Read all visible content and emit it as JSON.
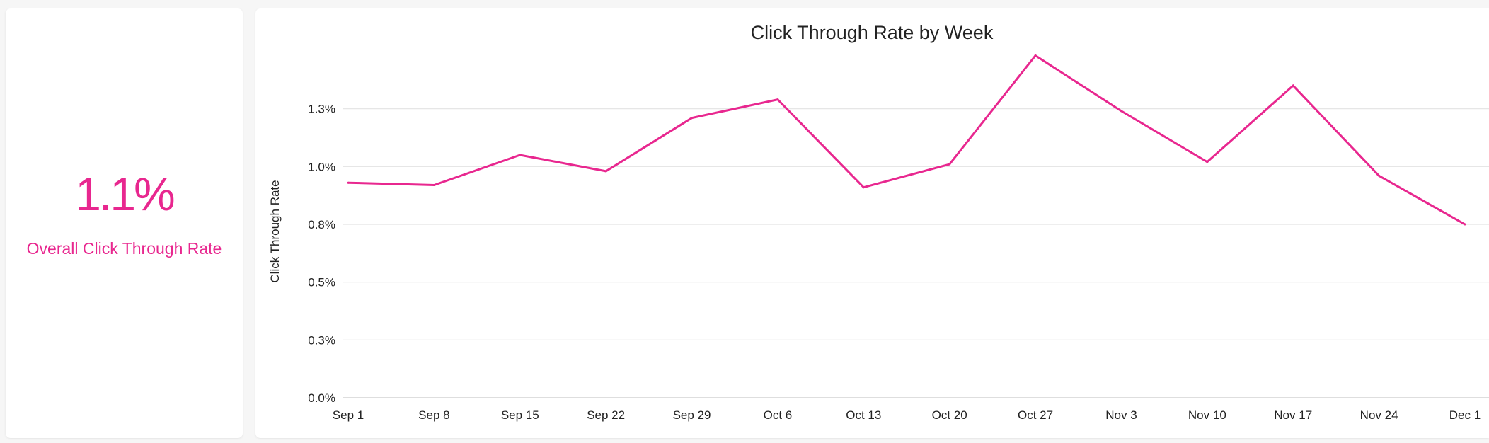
{
  "kpi": {
    "value": "1.1%",
    "label": "Overall Click Through Rate"
  },
  "colors": {
    "accent": "#e8278f",
    "grid": "#e3e3e3",
    "axis": "#c9c9c9",
    "text": "#222222"
  },
  "chart_data": {
    "type": "line",
    "title": "Click Through Rate by Week",
    "xlabel": "",
    "ylabel": "Click Through Rate",
    "categories": [
      "Sep 1",
      "Sep 8",
      "Sep 15",
      "Sep 22",
      "Sep 29",
      "Oct 6",
      "Oct 13",
      "Oct 20",
      "Oct 27",
      "Nov 3",
      "Nov 10",
      "Nov 17",
      "Nov 24",
      "Dec 1"
    ],
    "series": [
      {
        "values": [
          0.93,
          0.92,
          1.05,
          0.98,
          1.21,
          1.29,
          0.91,
          1.01,
          1.48,
          1.24,
          1.02,
          1.35,
          0.96,
          0.75
        ]
      }
    ],
    "yticks": [
      0,
      0.25,
      0.5,
      0.75,
      1.0,
      1.25
    ],
    "ytick_labels": [
      "0.0%",
      "0.3%",
      "0.5%",
      "0.8%",
      "1.0%",
      "1.3%"
    ],
    "ylim": [
      0,
      1.5
    ],
    "grid": true,
    "legend": "none"
  }
}
